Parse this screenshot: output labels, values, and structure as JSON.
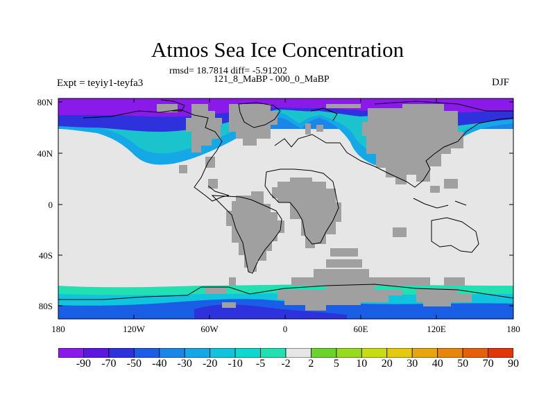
{
  "title": "Atmos Sea Ice Concentration",
  "stats": "rmsd= 18.7814 diff= -5.91202",
  "subtitle": "121_8_MaBP - 000_0_MaBP",
  "left_label": "Expt = teyiy1-teyfa3",
  "right_label": "DJF",
  "map": {
    "lat_labels": [
      "80N",
      "40N",
      "0",
      "40S",
      "80S"
    ],
    "lon_labels": [
      "180",
      "120W",
      "60W",
      "0",
      "60E",
      "120E",
      "180"
    ],
    "land_color": "#a0a0a0",
    "background_color": "#e6e6e6"
  },
  "colorbar": {
    "labels": [
      "-90",
      "-70",
      "-50",
      "-40",
      "-30",
      "-20",
      "-10",
      "-5",
      "-2",
      "2",
      "5",
      "10",
      "20",
      "30",
      "40",
      "50",
      "70",
      "90"
    ],
    "colors": [
      "#8a1aea",
      "#5b16e0",
      "#2e32dc",
      "#1a5ee6",
      "#1c86e8",
      "#14a8e6",
      "#10c4de",
      "#0cd8cf",
      "#22e0b2",
      "#e6e6e6",
      "#6ad42c",
      "#98da1e",
      "#c8dc14",
      "#e6c80e",
      "#e8a60e",
      "#e8860c",
      "#e6600c",
      "#e0360a"
    ]
  }
}
